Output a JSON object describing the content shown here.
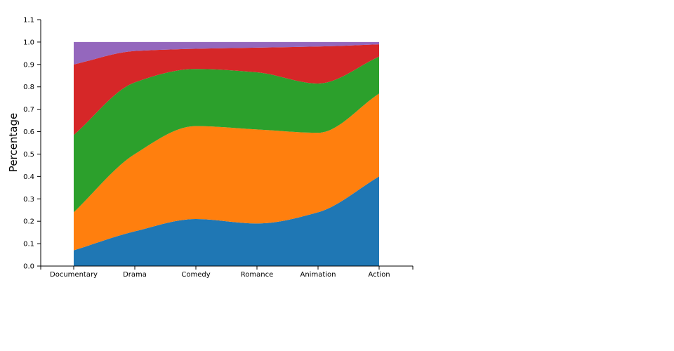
{
  "chart_data": {
    "type": "area",
    "stacked": true,
    "normalized": true,
    "curve": "smooth",
    "categories": [
      "Documentary",
      "Drama",
      "Comedy",
      "Romance",
      "Animation",
      "Action"
    ],
    "series": [
      {
        "values": [
          0.07,
          0.155,
          0.21,
          0.19,
          0.24,
          0.4
        ],
        "color": "#1f77b4"
      },
      {
        "values": [
          0.17,
          0.345,
          0.415,
          0.42,
          0.355,
          0.37
        ],
        "color": "#ff7f0e"
      },
      {
        "values": [
          0.345,
          0.32,
          0.255,
          0.255,
          0.22,
          0.165
        ],
        "color": "#2ca02c"
      },
      {
        "values": [
          0.315,
          0.14,
          0.09,
          0.11,
          0.165,
          0.055
        ],
        "color": "#d62728"
      },
      {
        "values": [
          0.1,
          0.04,
          0.03,
          0.025,
          0.02,
          0.01
        ],
        "color": "#9467bd"
      }
    ],
    "xlabel": "",
    "ylabel": "Percentage",
    "ylim": [
      0,
      1.1
    ],
    "yticks": [
      "0.0",
      "0.1",
      "0.2",
      "0.3",
      "0.4",
      "0.5",
      "0.6",
      "0.7",
      "0.8",
      "0.9",
      "1.0",
      "1.1"
    ],
    "grid": false,
    "legend": "none"
  }
}
